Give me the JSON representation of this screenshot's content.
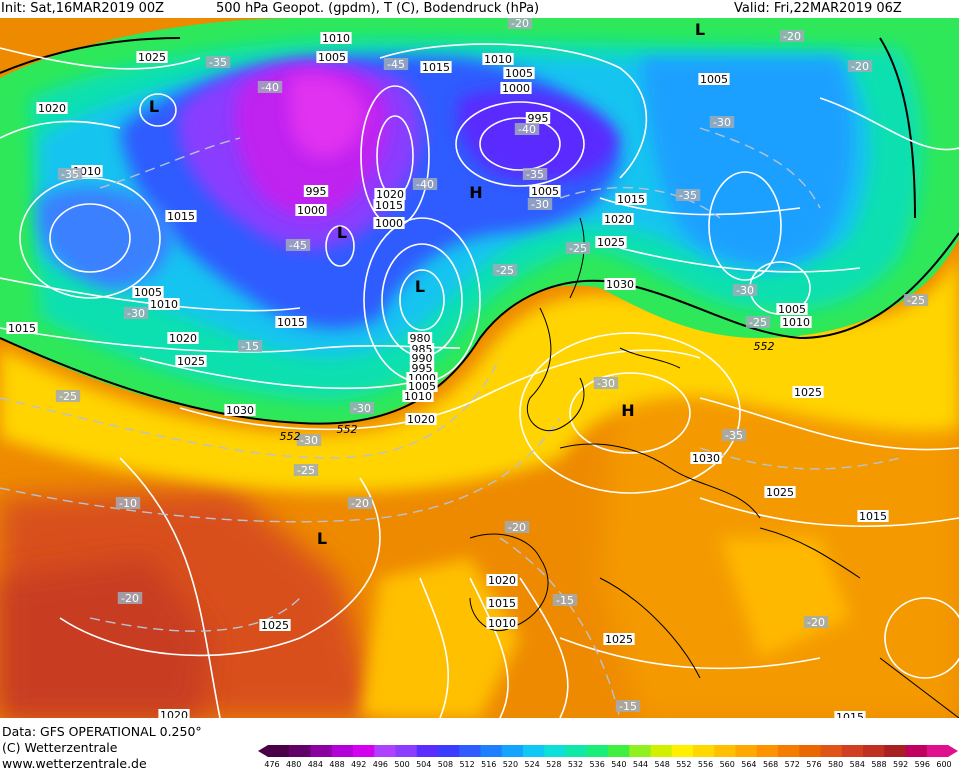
{
  "header": {
    "init": "Init: Sat,16MAR2019 00Z",
    "field": "500 hPa Geopot. (gpdm), T (C), Bodendruck (hPa)",
    "valid": "Valid: Fri,22MAR2019 06Z"
  },
  "footer": {
    "data_line": "Data: GFS OPERATIONAL 0.250°",
    "copyright": "(C) Wetterzentrale",
    "website": "www.wetterzentrale.de"
  },
  "legend": {
    "ticks": [
      "476",
      "480",
      "484",
      "488",
      "492",
      "496",
      "500",
      "504",
      "508",
      "512",
      "516",
      "520",
      "524",
      "528",
      "532",
      "536",
      "540",
      "544",
      "548",
      "552",
      "556",
      "560",
      "564",
      "568",
      "572",
      "576",
      "580",
      "584",
      "588",
      "592",
      "596",
      "600"
    ],
    "colors": [
      "#4a0048",
      "#62006a",
      "#8a00a0",
      "#b200d6",
      "#d400f0",
      "#b040ff",
      "#8a3cff",
      "#5a2cff",
      "#3a3cff",
      "#2e5cff",
      "#1e80ff",
      "#14a4ff",
      "#10c8f4",
      "#0ce0d8",
      "#10e8a8",
      "#18ee78",
      "#40f040",
      "#90f020",
      "#d0f000",
      "#fff000",
      "#ffd800",
      "#ffc000",
      "#ffa800",
      "#ff9200",
      "#f47c00",
      "#ea6800",
      "#e05418",
      "#d04020",
      "#c03020",
      "#a82020",
      "#c00060",
      "#e0108c"
    ]
  },
  "map": {
    "pressure_labels": [
      "1010",
      "1005",
      "1015",
      "1010",
      "1005",
      "1000",
      "995",
      "1005",
      "1025",
      "1020",
      "1010",
      "1015",
      "1005",
      "1010",
      "1015",
      "995",
      "1000",
      "1020",
      "1015",
      "1000",
      "1005",
      "1015",
      "1020",
      "1025",
      "1030",
      "1005",
      "1010",
      "1015",
      "1020",
      "1025",
      "980",
      "985",
      "990",
      "995",
      "1000",
      "1005",
      "1010",
      "1030",
      "1020",
      "1025",
      "1030",
      "1025",
      "1015",
      "1020",
      "1015",
      "1010",
      "1025",
      "1025",
      "1020",
      "1015"
    ],
    "temperature_labels": [
      "-35",
      "-35",
      "-45",
      "-40",
      "-40",
      "-30",
      "-40",
      "-35",
      "-30",
      "-25",
      "-25",
      "-35",
      "-30",
      "-25",
      "-30",
      "-45",
      "-25",
      "-30",
      "-30",
      "-35",
      "-25",
      "-30",
      "-25",
      "-20",
      "-20",
      "-20",
      "-15",
      "-20",
      "-15",
      "-10",
      "-20",
      "-20",
      "-20",
      "-15"
    ],
    "height_labels": [
      "552",
      "552",
      "552"
    ],
    "pressure_centers": [
      "L",
      "L",
      "L",
      "H",
      "H",
      "L",
      "L"
    ]
  }
}
